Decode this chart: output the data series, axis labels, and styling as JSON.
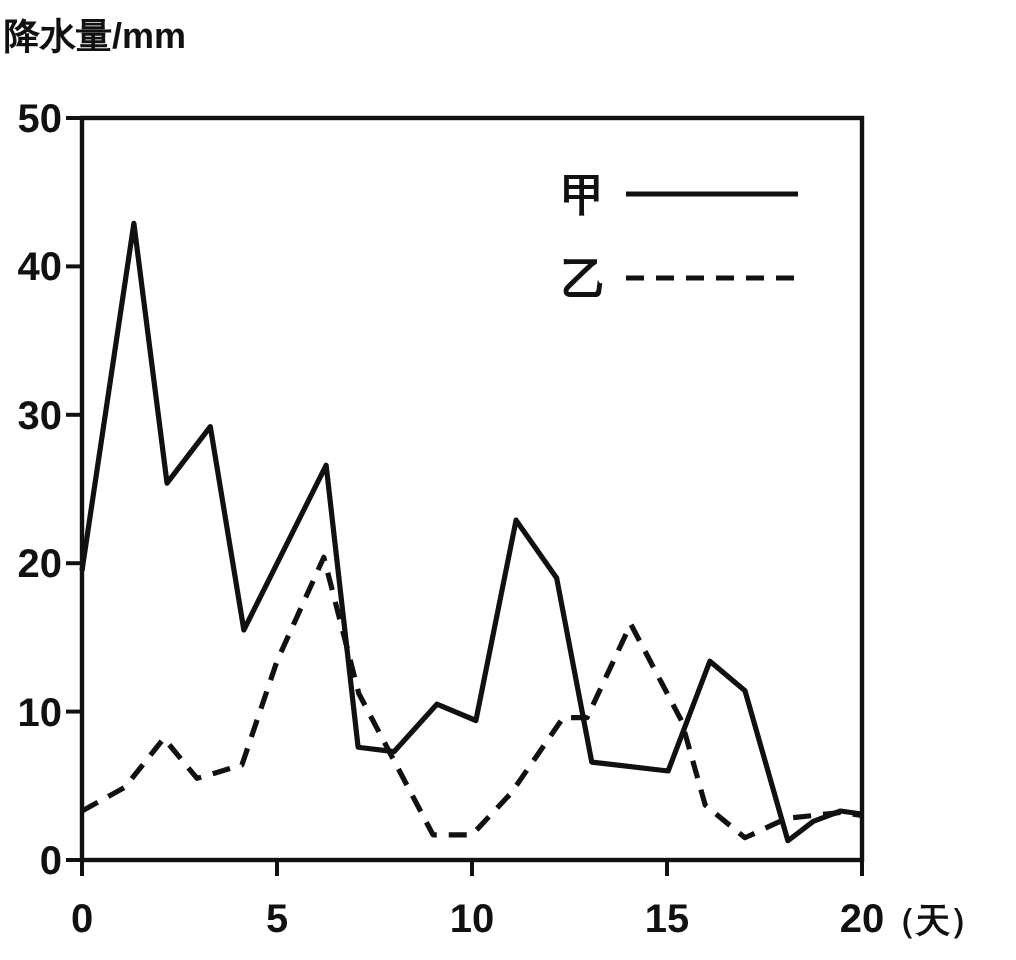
{
  "chart_data": {
    "type": "line",
    "ylabel": "降水量/mm",
    "xlabel": "（天）",
    "xlim": [
      0,
      20
    ],
    "xticks": [
      0,
      5,
      10,
      15,
      20
    ],
    "ylim": [
      0,
      50
    ],
    "yticks": [
      0,
      10,
      20,
      30,
      40,
      50
    ],
    "legend": "top right",
    "grid": false,
    "marker": "none",
    "series": [
      {
        "name": "甲",
        "color": "#111111",
        "line_style": "solid",
        "x": [
          0,
          1.33,
          2.18,
          3.29,
          4.15,
          6.26,
          7.08,
          8.0,
          9.1,
          10.1,
          11.13,
          12.17,
          13.07,
          15.03,
          16.1,
          17.0,
          18.1,
          18.75,
          19.45,
          20
        ],
        "values": [
          19.5,
          42.9,
          25.4,
          29.2,
          15.5,
          26.6,
          7.6,
          7.3,
          10.5,
          9.4,
          22.9,
          19.0,
          6.6,
          6.0,
          13.4,
          11.4,
          1.3,
          2.6,
          3.3,
          3.1
        ]
      },
      {
        "name": "乙",
        "color": "#111111",
        "line_style": "dashed",
        "x": [
          0,
          1.1,
          2.1,
          2.95,
          4.1,
          5.0,
          6.2,
          7.1,
          8.1,
          9.0,
          10.0,
          11.0,
          12.34,
          12.95,
          14.07,
          15.37,
          15.98,
          17.0,
          18.06,
          19.45,
          20
        ],
        "values": [
          3.3,
          4.9,
          8.2,
          5.5,
          6.4,
          13.4,
          20.4,
          11.2,
          6.2,
          1.7,
          1.7,
          4.5,
          9.6,
          9.6,
          15.9,
          9.4,
          3.7,
          1.5,
          2.8,
          3.2,
          3.0
        ]
      }
    ]
  }
}
